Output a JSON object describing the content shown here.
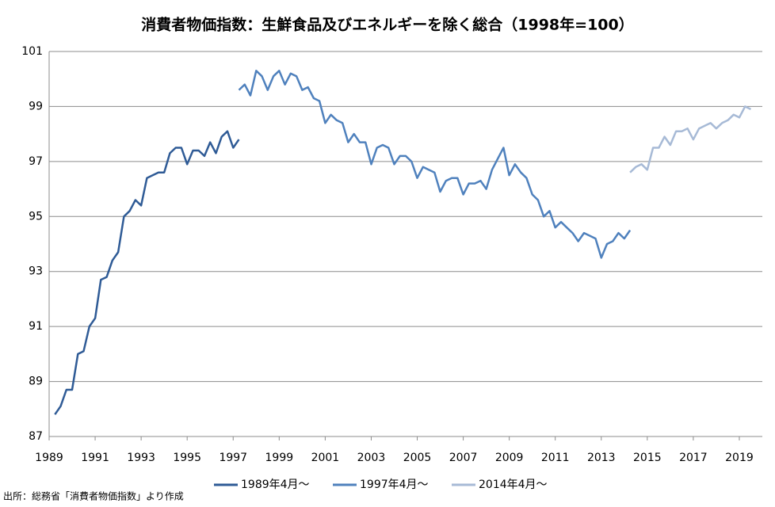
{
  "chart_data": {
    "type": "line",
    "title": "消費者物価指数：生鮮食品及びエネルギーを除く総合（1998年=100）",
    "source": "出所：総務省「消費者物価指数」より作成",
    "xlim": [
      1989,
      2020
    ],
    "ylim": [
      87,
      101
    ],
    "xticks": [
      1989,
      1991,
      1993,
      1995,
      1997,
      1999,
      2001,
      2003,
      2005,
      2007,
      2009,
      2011,
      2013,
      2015,
      2017,
      2019
    ],
    "yticks": [
      87,
      89,
      91,
      93,
      95,
      97,
      99,
      101
    ],
    "grid": true,
    "legend": "bottom",
    "series": [
      {
        "name": "1989年4月～",
        "color": "#2f5b96",
        "x": [
          1989.25,
          1989.5,
          1989.75,
          1990,
          1990.25,
          1990.5,
          1990.75,
          1991,
          1991.25,
          1991.5,
          1991.75,
          1992,
          1992.25,
          1992.5,
          1992.75,
          1993,
          1993.25,
          1993.5,
          1993.75,
          1994,
          1994.25,
          1994.5,
          1994.75,
          1995,
          1995.25,
          1995.5,
          1995.75,
          1996,
          1996.25,
          1996.5,
          1996.75,
          1997,
          1997.25
        ],
        "values": [
          87.8,
          88.1,
          88.7,
          88.7,
          90.0,
          90.1,
          91.0,
          91.3,
          92.7,
          92.8,
          93.4,
          93.7,
          95.0,
          95.2,
          95.6,
          95.4,
          96.4,
          96.5,
          96.6,
          96.6,
          97.3,
          97.5,
          97.5,
          96.9,
          97.4,
          97.4,
          97.2,
          97.7,
          97.3,
          97.9,
          98.1,
          97.5,
          97.8
        ]
      },
      {
        "name": "1997年4月～",
        "color": "#4f81bd",
        "x": [
          1997.25,
          1997.5,
          1997.75,
          1998,
          1998.25,
          1998.5,
          1998.75,
          1999,
          1999.25,
          1999.5,
          1999.75,
          2000,
          2000.25,
          2000.5,
          2000.75,
          2001,
          2001.25,
          2001.5,
          2001.75,
          2002,
          2002.25,
          2002.5,
          2002.75,
          2003,
          2003.25,
          2003.5,
          2003.75,
          2004,
          2004.25,
          2004.5,
          2004.75,
          2005,
          2005.25,
          2005.5,
          2005.75,
          2006,
          2006.25,
          2006.5,
          2006.75,
          2007,
          2007.25,
          2007.5,
          2007.75,
          2008,
          2008.25,
          2008.5,
          2008.75,
          2009,
          2009.25,
          2009.5,
          2009.75,
          2010,
          2010.25,
          2010.5,
          2010.75,
          2011,
          2011.25,
          2011.5,
          2011.75,
          2012,
          2012.25,
          2012.5,
          2012.75,
          2013,
          2013.25,
          2013.5,
          2013.75,
          2014,
          2014.25
        ],
        "values": [
          99.6,
          99.8,
          99.4,
          100.3,
          100.1,
          99.6,
          100.1,
          100.3,
          99.8,
          100.2,
          100.1,
          99.6,
          99.7,
          99.3,
          99.2,
          98.4,
          98.7,
          98.5,
          98.4,
          97.7,
          98.0,
          97.7,
          97.7,
          96.9,
          97.5,
          97.6,
          97.5,
          96.9,
          97.2,
          97.2,
          97.0,
          96.4,
          96.8,
          96.7,
          96.6,
          95.9,
          96.3,
          96.4,
          96.4,
          95.8,
          96.2,
          96.2,
          96.3,
          96.0,
          96.7,
          97.1,
          97.5,
          96.5,
          96.9,
          96.6,
          96.4,
          95.8,
          95.6,
          95.0,
          95.2,
          94.6,
          94.8,
          94.6,
          94.4,
          94.1,
          94.4,
          94.3,
          94.2,
          93.5,
          94.0,
          94.1,
          94.4,
          94.2,
          94.5
        ]
      },
      {
        "name": "2014年4月～",
        "color": "#a7bad6",
        "x": [
          2014.25,
          2014.5,
          2014.75,
          2015,
          2015.25,
          2015.5,
          2015.75,
          2016,
          2016.25,
          2016.5,
          2016.75,
          2017,
          2017.25,
          2017.5,
          2017.75,
          2018,
          2018.25,
          2018.5,
          2018.75,
          2019,
          2019.25,
          2019.5
        ],
        "values": [
          96.6,
          96.8,
          96.9,
          96.7,
          97.5,
          97.5,
          97.9,
          97.6,
          98.1,
          98.1,
          98.2,
          97.8,
          98.2,
          98.3,
          98.4,
          98.2,
          98.4,
          98.5,
          98.7,
          98.6,
          99.0,
          98.9
        ]
      }
    ]
  }
}
